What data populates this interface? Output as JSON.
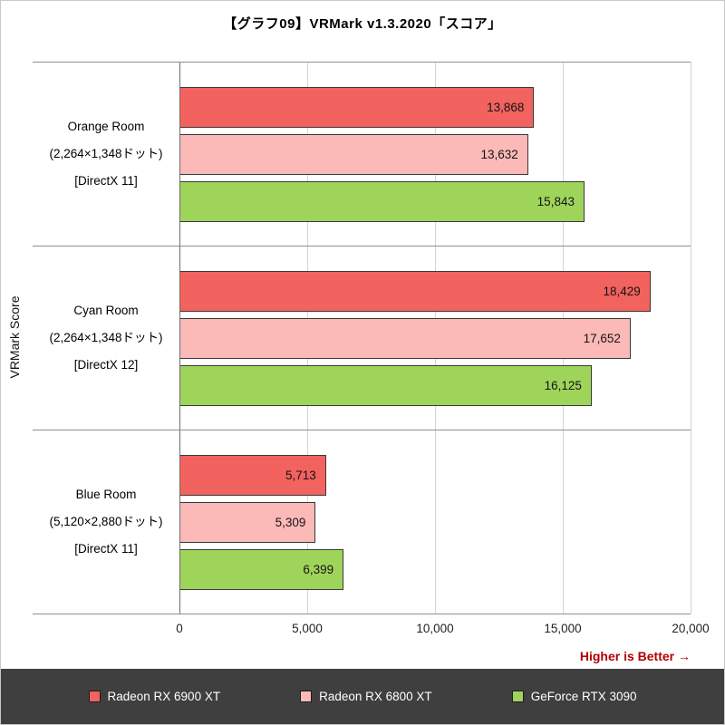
{
  "chart_data": {
    "type": "bar",
    "orientation": "horizontal",
    "title": "【グラフ09】VRMark v1.3.2020「スコア」",
    "axis_label": "VRMark Score",
    "xlim": [
      0,
      20000
    ],
    "xticks": [
      {
        "value": 0,
        "label": "0"
      },
      {
        "value": 5000,
        "label": "5,000"
      },
      {
        "value": 10000,
        "label": "10,000"
      },
      {
        "value": 15000,
        "label": "15,000"
      },
      {
        "value": 20000,
        "label": "20,000"
      }
    ],
    "grid": true,
    "legend_position": "bottom",
    "categories": [
      {
        "lines": [
          "Orange Room",
          "(2,264×1,348ドット)",
          "[DirectX 11]"
        ]
      },
      {
        "lines": [
          "Cyan Room",
          "(2,264×1,348ドット)",
          "[DirectX 12]"
        ]
      },
      {
        "lines": [
          "Blue Room",
          "(5,120×2,880ドット)",
          "[DirectX 11]"
        ]
      }
    ],
    "series": [
      {
        "name": "Radeon RX 6900 XT",
        "color": "#f2625e",
        "values": [
          13868,
          18429,
          5713
        ],
        "value_labels": [
          "13,868",
          "18,429",
          "5,713"
        ]
      },
      {
        "name": "Radeon RX 6800 XT",
        "color": "#fbb9b7",
        "values": [
          13632,
          17652,
          5309
        ],
        "value_labels": [
          "13,632",
          "17,652",
          "5,309"
        ]
      },
      {
        "name": "GeForce RTX 3090",
        "color": "#9fd45b",
        "values": [
          15843,
          16125,
          6399
        ],
        "value_labels": [
          "15,843",
          "16,125",
          "6,399"
        ]
      }
    ],
    "note": "Higher is Better →"
  },
  "colors": {
    "bar_border": "#3a3a3a",
    "legend_bg": "#3f3f3f",
    "note_color": "#b40000",
    "gridline": "#d4d4d4",
    "separator": "#8f8f8f"
  }
}
